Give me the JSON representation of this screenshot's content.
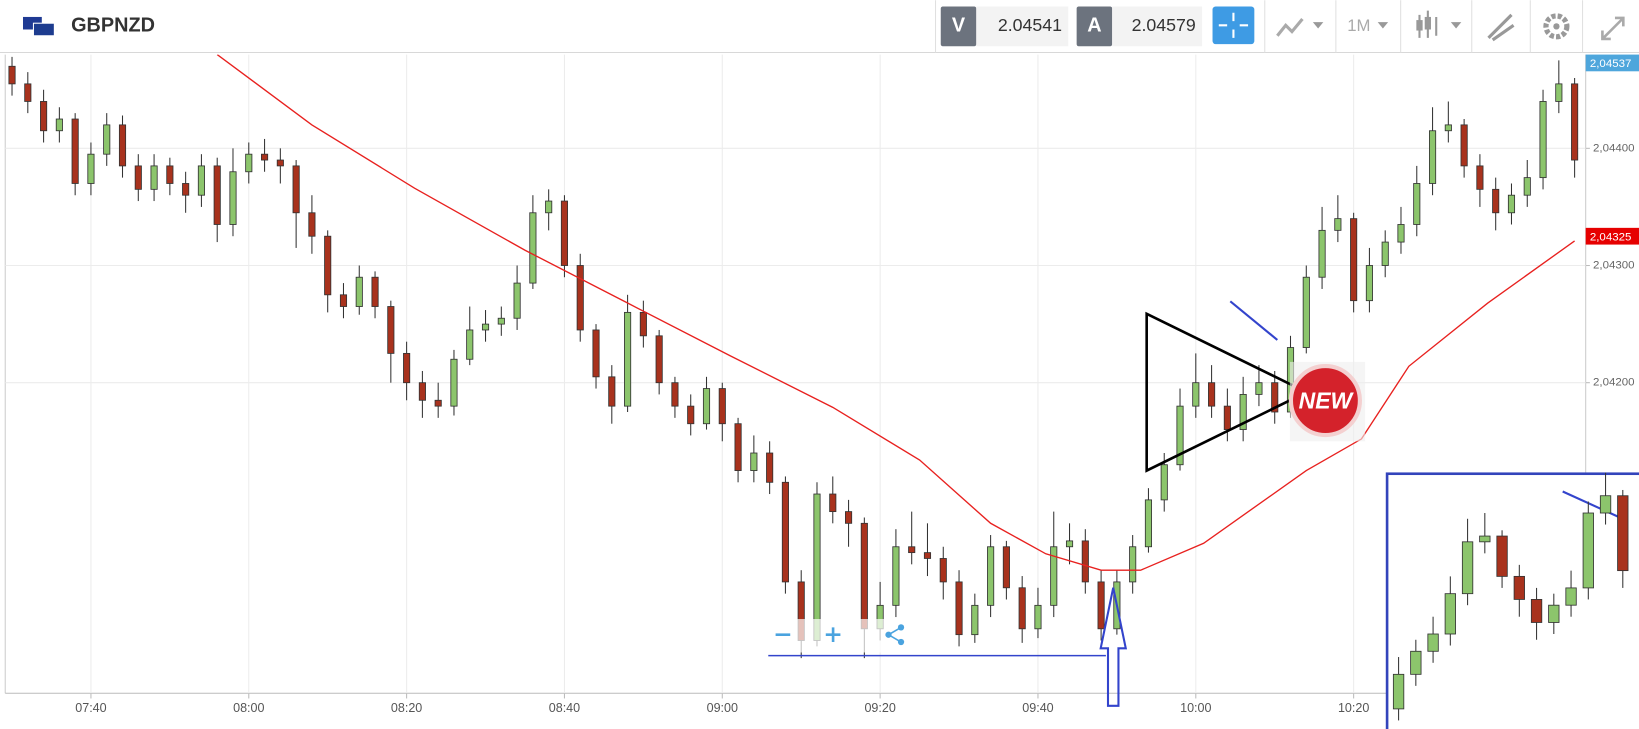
{
  "header": {
    "symbol": "GBPNZD",
    "bid_label": "V",
    "bid": "2.04541",
    "ask_label": "A",
    "ask": "2.04579",
    "timeframe": "1M"
  },
  "chart_data": {
    "type": "candlestick",
    "x": [
      "07:30",
      "07:32",
      "07:34",
      "07:36",
      "07:38",
      "07:40",
      "07:42",
      "07:44",
      "07:46",
      "07:48",
      "07:50",
      "07:52",
      "07:54",
      "07:56",
      "07:58",
      "08:00",
      "08:02",
      "08:04",
      "08:06",
      "08:08",
      "08:10",
      "08:12",
      "08:14",
      "08:16",
      "08:18",
      "08:20",
      "08:22",
      "08:24",
      "08:26",
      "08:28",
      "08:30",
      "08:32",
      "08:34",
      "08:36",
      "08:38",
      "08:40",
      "08:42",
      "08:44",
      "08:46",
      "08:48",
      "08:50",
      "08:52",
      "08:54",
      "08:56",
      "08:58",
      "09:00",
      "09:02",
      "09:04",
      "09:06",
      "09:08",
      "09:10",
      "09:12",
      "09:14",
      "09:16",
      "09:18",
      "09:20",
      "09:22",
      "09:24",
      "09:26",
      "09:28",
      "09:30",
      "09:32",
      "09:34",
      "09:36",
      "09:38",
      "09:40",
      "09:42",
      "09:44",
      "09:46",
      "09:48",
      "09:50",
      "09:52",
      "09:54",
      "09:56",
      "09:58",
      "10:00",
      "10:02",
      "10:04",
      "10:06",
      "10:08",
      "10:10",
      "10:12",
      "10:14",
      "10:16",
      "10:18",
      "10:20",
      "10:22",
      "10:24",
      "10:26",
      "10:28",
      "10:30",
      "10:32",
      "10:34",
      "10:36",
      "10:38",
      "10:40",
      "10:42",
      "10:44",
      "10:46",
      "10:48"
    ],
    "open": [
      2.0447,
      2.04455,
      2.0444,
      2.04415,
      2.04425,
      2.0437,
      2.04395,
      2.0442,
      2.04385,
      2.04365,
      2.04385,
      2.0437,
      2.0436,
      2.04385,
      2.04335,
      2.0438,
      2.04395,
      2.0439,
      2.04385,
      2.04345,
      2.04325,
      2.04275,
      2.04265,
      2.0429,
      2.04265,
      2.04225,
      2.042,
      2.04185,
      2.0418,
      2.0422,
      2.04245,
      2.0425,
      2.04255,
      2.04285,
      2.04345,
      2.04355,
      2.043,
      2.04245,
      2.04205,
      2.0418,
      2.0426,
      2.0424,
      2.042,
      2.0418,
      2.04165,
      2.04195,
      2.04165,
      2.04125,
      2.0414,
      2.04115,
      2.0403,
      2.0398,
      2.04105,
      2.0409,
      2.0408,
      2.0399,
      2.0401,
      2.0406,
      2.04055,
      2.0405,
      2.0403,
      2.03985,
      2.0401,
      2.0406,
      2.04025,
      2.0399,
      2.0401,
      2.0406,
      2.04065,
      2.0403,
      2.0399,
      2.0403,
      2.0406,
      2.041,
      2.0413,
      2.0418,
      2.042,
      2.0418,
      2.0416,
      2.0419,
      2.042,
      2.04175,
      2.0423,
      2.0429,
      2.0433,
      2.0434,
      2.0427,
      2.043,
      2.0432,
      2.04335,
      2.0437,
      2.04415,
      2.0442,
      2.04385,
      2.04365,
      2.04345,
      2.0436,
      2.04375,
      2.0444,
      2.04455
    ],
    "high": [
      2.04478,
      2.04465,
      2.0445,
      2.04435,
      2.0443,
      2.04405,
      2.0443,
      2.04428,
      2.04395,
      2.04395,
      2.04392,
      2.0438,
      2.04395,
      2.04392,
      2.044,
      2.04405,
      2.04408,
      2.044,
      2.0439,
      2.0436,
      2.0433,
      2.04285,
      2.043,
      2.04295,
      2.0427,
      2.04235,
      2.0421,
      2.042,
      2.04228,
      2.04265,
      2.04262,
      2.04265,
      2.043,
      2.0436,
      2.04365,
      2.0436,
      2.0431,
      2.0425,
      2.04215,
      2.04275,
      2.0427,
      2.04245,
      2.04205,
      2.0419,
      2.04205,
      2.042,
      2.0417,
      2.04155,
      2.0415,
      2.0412,
      2.0404,
      2.04115,
      2.0412,
      2.041,
      2.04085,
      2.0403,
      2.04075,
      2.0409,
      2.0408,
      2.0406,
      2.0404,
      2.0402,
      2.0407,
      2.04065,
      2.04035,
      2.04025,
      2.0409,
      2.0408,
      2.04075,
      2.0404,
      2.0404,
      2.0407,
      2.0411,
      2.0414,
      2.04195,
      2.04225,
      2.04215,
      2.04195,
      2.04205,
      2.04215,
      2.0421,
      2.0424,
      2.043,
      2.0435,
      2.0436,
      2.04345,
      2.04315,
      2.0433,
      2.0435,
      2.04385,
      2.04435,
      2.0444,
      2.04425,
      2.04395,
      2.04375,
      2.0437,
      2.0439,
      2.0445,
      2.04475,
      2.0446
    ],
    "low": [
      2.04445,
      2.0443,
      2.04405,
      2.04405,
      2.0436,
      2.0436,
      2.04385,
      2.04375,
      2.04355,
      2.04355,
      2.0436,
      2.04345,
      2.0435,
      2.0432,
      2.04325,
      2.0437,
      2.0438,
      2.0437,
      2.04315,
      2.0431,
      2.0426,
      2.04255,
      2.04258,
      2.04255,
      2.042,
      2.04185,
      2.0417,
      2.0417,
      2.04172,
      2.04215,
      2.04235,
      2.0424,
      2.04245,
      2.0428,
      2.0433,
      2.0429,
      2.04235,
      2.04195,
      2.04165,
      2.04175,
      2.0423,
      2.0419,
      2.0417,
      2.04155,
      2.0416,
      2.0415,
      2.04115,
      2.04115,
      2.04105,
      2.0402,
      2.03965,
      2.03975,
      2.0408,
      2.0406,
      2.03965,
      2.0398,
      2.04,
      2.04045,
      2.04035,
      2.04015,
      2.03975,
      2.03978,
      2.04,
      2.04015,
      2.03978,
      2.03982,
      2.04,
      2.04045,
      2.0402,
      2.0398,
      2.03985,
      2.0402,
      2.04055,
      2.0409,
      2.04125,
      2.0417,
      2.0417,
      2.0415,
      2.0415,
      2.0418,
      2.04165,
      2.0417,
      2.04225,
      2.0428,
      2.0432,
      2.0426,
      2.0426,
      2.0429,
      2.0431,
      2.04325,
      2.0436,
      2.04405,
      2.04375,
      2.0435,
      2.0433,
      2.04335,
      2.0435,
      2.04365,
      2.0443,
      2.04375
    ],
    "close": [
      2.04455,
      2.0444,
      2.04415,
      2.04425,
      2.0437,
      2.04395,
      2.0442,
      2.04385,
      2.04365,
      2.04385,
      2.0437,
      2.0436,
      2.04385,
      2.04335,
      2.0438,
      2.04395,
      2.0439,
      2.04385,
      2.04345,
      2.04325,
      2.04275,
      2.04265,
      2.0429,
      2.04265,
      2.04225,
      2.042,
      2.04185,
      2.0418,
      2.0422,
      2.04245,
      2.0425,
      2.04255,
      2.04285,
      2.04345,
      2.04355,
      2.043,
      2.04245,
      2.04205,
      2.0418,
      2.0426,
      2.0424,
      2.042,
      2.0418,
      2.04165,
      2.04195,
      2.04165,
      2.04125,
      2.0414,
      2.04115,
      2.0403,
      2.0398,
      2.04105,
      2.0409,
      2.0408,
      2.0399,
      2.0401,
      2.0406,
      2.04055,
      2.0405,
      2.0403,
      2.03985,
      2.0401,
      2.0406,
      2.04025,
      2.0399,
      2.0401,
      2.0406,
      2.04065,
      2.0403,
      2.0399,
      2.0403,
      2.0406,
      2.041,
      2.0413,
      2.0418,
      2.042,
      2.0418,
      2.0416,
      2.0419,
      2.042,
      2.04175,
      2.0423,
      2.0429,
      2.0433,
      2.0434,
      2.0427,
      2.043,
      2.0432,
      2.04335,
      2.0437,
      2.04415,
      2.0442,
      2.04385,
      2.04365,
      2.04345,
      2.0436,
      2.04375,
      2.0444,
      2.04455,
      2.0439
    ],
    "up_color": "#8cc56c",
    "down_color": "#a8321d",
    "moving_average": {
      "color": "#e8211f",
      "x": [
        "07:56",
        "08:08",
        "08:21",
        "08:35",
        "08:48",
        "09:01",
        "09:14",
        "09:25",
        "09:34",
        "09:41",
        "09:48",
        "09:53",
        "10:01",
        "10:14",
        "10:21",
        "10:27",
        "10:37",
        "10:48"
      ],
      "values": [
        2.0448,
        2.0442,
        2.04366,
        2.04313,
        2.04268,
        2.04223,
        2.04179,
        2.04134,
        2.0408,
        2.04054,
        2.0404,
        2.0404,
        2.04063,
        2.04125,
        2.04152,
        2.04214,
        2.04268,
        2.04321
      ]
    },
    "ylim": [
      2.03935,
      2.0448
    ],
    "yticks": [
      {
        "value": 2.042,
        "label": "2,04200"
      },
      {
        "value": 2.043,
        "label": "2,04300"
      },
      {
        "value": 2.044,
        "label": "2,04400"
      }
    ],
    "xticks": [
      "07:40",
      "08:00",
      "08:20",
      "08:40",
      "09:00",
      "09:20",
      "09:40",
      "10:00",
      "10:20"
    ],
    "grid": true,
    "price_markers": [
      {
        "value": 2.04537,
        "label": "2,04537",
        "color": "#4ea6dc"
      },
      {
        "value": 2.04325,
        "label": "2,04325",
        "color": "#e60000"
      }
    ],
    "annotations": {
      "badge": "NEW"
    },
    "inset_last": 14
  }
}
